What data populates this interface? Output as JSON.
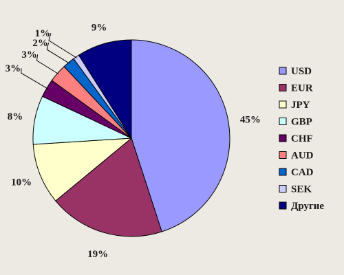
{
  "chart_data": {
    "type": "pie",
    "title": "",
    "categories": [
      "USD",
      "EUR",
      "JPY",
      "GBP",
      "CHF",
      "AUD",
      "CAD",
      "SEK",
      "Другие"
    ],
    "values": [
      45,
      19,
      10,
      8,
      3,
      3,
      2,
      1,
      9
    ],
    "labels": [
      "45%",
      "19%",
      "10%",
      "8%",
      "3%",
      "3%",
      "2%",
      "1%",
      "9%"
    ],
    "colors": [
      "#9999ff",
      "#993366",
      "#ffffcc",
      "#ccffff",
      "#660066",
      "#ff8080",
      "#0066cc",
      "#ccccff",
      "#000080"
    ],
    "legend_position": "right",
    "start": "top",
    "direction": "clockwise"
  }
}
